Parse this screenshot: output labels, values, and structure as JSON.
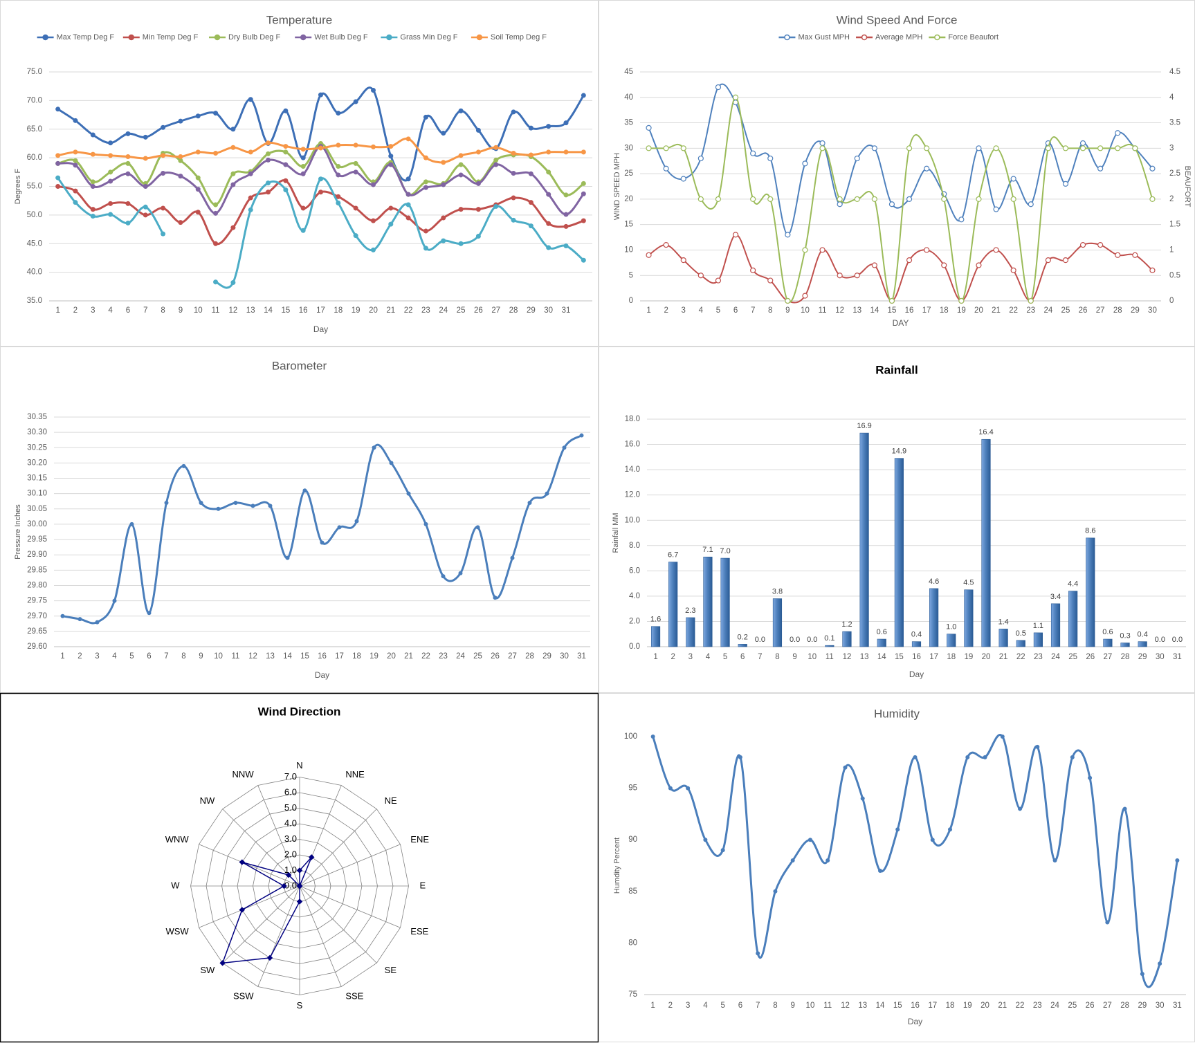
{
  "chart_data": [
    {
      "type": "line",
      "title": "Temperature",
      "x_label": "Day",
      "y_label": "Degrees F",
      "legend": "top",
      "grid": true,
      "categories": [
        1,
        2,
        3,
        4,
        6,
        7,
        8,
        9,
        10,
        11,
        12,
        13,
        14,
        15,
        16,
        17,
        18,
        19,
        20,
        21,
        22,
        23,
        24,
        25,
        26,
        27,
        28,
        29,
        30,
        31,
        null
      ],
      "ylim": [
        35,
        75
      ],
      "yticks": [
        {
          "value": 35,
          "label": "35.0"
        },
        {
          "value": 40,
          "label": "40.0"
        },
        {
          "value": 45,
          "label": "45.0"
        },
        {
          "value": 50,
          "label": "50.0"
        },
        {
          "value": 55,
          "label": "55.0"
        },
        {
          "value": 60,
          "label": "60.0"
        },
        {
          "value": 65,
          "label": "65.0"
        },
        {
          "value": 70,
          "label": "70.0"
        },
        {
          "value": 75,
          "label": "75.0"
        }
      ],
      "series": [
        {
          "name": "Max Temp Deg F",
          "color": "#3d6fb6",
          "values": [
            68.5,
            66.5,
            64,
            62.6,
            64.2,
            63.6,
            65.3,
            66.4,
            67.3,
            67.8,
            65,
            70.2,
            62.5,
            68.2,
            60,
            71,
            67.8,
            69.8,
            71.8,
            60.3,
            56.3,
            67.1,
            64.3,
            68.2,
            64.8,
            61.6,
            68,
            65.2,
            65.5,
            66.1,
            70.9
          ]
        },
        {
          "name": "Min Temp Deg F",
          "color": "#c0504d",
          "values": [
            55,
            54.2,
            51,
            52,
            52,
            50,
            51.2,
            48.7,
            50.5,
            45,
            47.8,
            53,
            54,
            56,
            51.2,
            54,
            53.2,
            51.2,
            49,
            51.2,
            49.5,
            47.2,
            49.5,
            51,
            51,
            51.8,
            53,
            52.2,
            48.5,
            48,
            49
          ]
        },
        {
          "name": "Dry Bulb Deg F",
          "color": "#9bbb59",
          "values": [
            59,
            59.5,
            55.8,
            57.5,
            59,
            55.5,
            60.8,
            59.5,
            56.5,
            51.8,
            57.2,
            57.6,
            60.7,
            61,
            58.5,
            62.5,
            58.5,
            59,
            55.8,
            59.2,
            53.6,
            55.8,
            55.5,
            58.8,
            55.8,
            59.6,
            60.5,
            60.2,
            57.5,
            53.5,
            55.5
          ]
        },
        {
          "name": "Wet Bulb Deg F",
          "color": "#8064a2",
          "values": [
            59,
            58.7,
            55,
            55.9,
            57.2,
            55,
            57.3,
            56.8,
            54.5,
            50.3,
            55.3,
            57.2,
            59.6,
            58.8,
            57.2,
            62,
            57,
            57.5,
            55.3,
            58.8,
            53.6,
            54.8,
            55.3,
            57,
            55.5,
            58.8,
            57.3,
            57.2,
            53.6,
            50.1,
            53.7
          ]
        },
        {
          "name": "Grass Min Deg F",
          "color": "#4bacc6",
          "values": [
            56.5,
            52.2,
            49.8,
            50.1,
            48.6,
            51.4,
            46.7,
            null,
            null,
            38.3,
            38.2,
            50.9,
            55.6,
            54.4,
            47.3,
            56.3,
            52.1,
            46.4,
            43.9,
            48.4,
            51.8,
            44.2,
            45.5,
            45.0,
            46.3,
            51.5,
            49.1,
            48.1,
            44.3,
            44.6,
            42.1
          ]
        },
        {
          "name": "Soil Temp Deg F",
          "color": "#f79646",
          "values": [
            60.4,
            61,
            60.6,
            60.4,
            60.2,
            59.9,
            60.4,
            60.2,
            61,
            60.8,
            61.8,
            61,
            62.6,
            62,
            61.5,
            61.7,
            62.2,
            62.2,
            61.9,
            62,
            63.3,
            60,
            59.2,
            60.4,
            61,
            61.8,
            60.8,
            60.5,
            61,
            61,
            61
          ]
        }
      ]
    },
    {
      "type": "line",
      "title": "Wind Speed And Force",
      "x_label": "DAY",
      "y_label": "WIND SPEED MPH",
      "y2_label": "BEAUFORT",
      "legend": "top",
      "grid": true,
      "categories": [
        1,
        2,
        3,
        4,
        5,
        6,
        7,
        8,
        9,
        10,
        11,
        12,
        13,
        14,
        15,
        16,
        17,
        18,
        19,
        20,
        21,
        22,
        23,
        24,
        25,
        26,
        27,
        28,
        29,
        30
      ],
      "ylim": [
        0,
        45
      ],
      "yticks": [
        0,
        5,
        10,
        15,
        20,
        25,
        30,
        35,
        40,
        45
      ],
      "y2lim": [
        0,
        4.5
      ],
      "y2ticks": [
        0,
        0.5,
        1,
        1.5,
        2,
        2.5,
        3,
        3.5,
        4,
        4.5
      ],
      "series": [
        {
          "name": "Max Gust MPH",
          "color": "#4f81bd",
          "values": [
            34,
            26,
            24,
            28,
            42,
            39,
            29,
            28,
            13,
            27,
            31,
            19,
            28,
            30,
            19,
            20,
            26,
            21,
            16,
            30,
            18,
            24,
            19,
            31,
            23,
            31,
            26,
            33,
            30,
            26
          ]
        },
        {
          "name": "Average MPH",
          "color": "#c0504d",
          "values": [
            9,
            11,
            8,
            5,
            4,
            13,
            6,
            4,
            0,
            1,
            10,
            5,
            5,
            7,
            0,
            8,
            10,
            7,
            0,
            7,
            10,
            6,
            0,
            8,
            8,
            11,
            11,
            9,
            9,
            6
          ]
        },
        {
          "name": "Force Beaufort",
          "color": "#9bbb59",
          "axis": "y2",
          "values": [
            3,
            3,
            3,
            2,
            2,
            4,
            2,
            2,
            0,
            1,
            3,
            2,
            2,
            2,
            0,
            3,
            3,
            2,
            0,
            2,
            3,
            2,
            0,
            3,
            3,
            3,
            3,
            3,
            3,
            2
          ]
        }
      ]
    },
    {
      "type": "line",
      "title": "Barometer",
      "x_label": "Day",
      "y_label": "Pressure Inches",
      "grid": true,
      "color": "#4a7ebb",
      "categories": [
        1,
        2,
        3,
        4,
        5,
        6,
        7,
        8,
        9,
        10,
        11,
        12,
        13,
        14,
        15,
        16,
        17,
        18,
        19,
        20,
        21,
        22,
        23,
        24,
        25,
        26,
        27,
        28,
        29,
        30,
        31
      ],
      "values": [
        29.7,
        29.69,
        29.68,
        29.75,
        30.0,
        29.71,
        30.07,
        30.19,
        30.07,
        30.05,
        30.07,
        30.06,
        30.06,
        29.89,
        30.11,
        29.94,
        29.99,
        30.01,
        30.25,
        30.2,
        30.1,
        30.0,
        29.83,
        29.84,
        29.99,
        29.76,
        29.89,
        30.07,
        30.1,
        30.25,
        30.29
      ],
      "ylim": [
        29.6,
        30.35
      ],
      "yticks": [
        {
          "value": 29.6,
          "label": "29.60"
        },
        29.65,
        {
          "value": 29.7,
          "label": "29.70"
        },
        29.75,
        {
          "value": 29.8,
          "label": "29.80"
        },
        29.85,
        {
          "value": 29.9,
          "label": "29.90"
        },
        29.95,
        {
          "value": 30,
          "label": "30.00"
        },
        30.05,
        {
          "value": 30.1,
          "label": "30.10"
        },
        30.15,
        {
          "value": 30.2,
          "label": "30.20"
        },
        30.25,
        {
          "value": 30.3,
          "label": "30.30"
        },
        30.35
      ]
    },
    {
      "type": "bar",
      "title": "Rainfall",
      "x_label": "Day",
      "y_label": "Rainfall MM",
      "grid": true,
      "color": "#4f81bd",
      "categories": [
        1,
        2,
        3,
        4,
        5,
        6,
        7,
        8,
        9,
        10,
        11,
        12,
        13,
        14,
        15,
        16,
        17,
        18,
        19,
        20,
        21,
        22,
        23,
        24,
        25,
        26,
        27,
        28,
        29,
        30,
        31
      ],
      "values": [
        1.6,
        6.7,
        2.3,
        7.1,
        7.0,
        0.2,
        0.0,
        3.8,
        0.0,
        0.0,
        0.1,
        1.2,
        16.9,
        0.6,
        14.9,
        0.4,
        4.6,
        1.0,
        4.5,
        16.4,
        1.4,
        0.5,
        1.1,
        3.4,
        4.4,
        8.6,
        0.6,
        0.3,
        0.4,
        0.0,
        0.0
      ],
      "value_labels": [
        "1.6",
        "6.7",
        "2.3",
        "7.1",
        "7.0",
        "0.2",
        "0.0",
        "3.8",
        "0.0",
        "0.0",
        "0.1",
        "1.2",
        "16.9",
        "0.6",
        "14.9",
        "0.4",
        "4.6",
        "1.0",
        "4.5",
        "16.4",
        "1.4",
        "0.5",
        "1.1",
        "3.4",
        "4.4",
        "8.6",
        "0.6",
        "0.3",
        "0.4",
        "0.0",
        "0.0"
      ],
      "ylim": [
        0,
        18
      ],
      "yticks": [
        {
          "value": 0,
          "label": "0.0"
        },
        {
          "value": 2,
          "label": "2.0"
        },
        {
          "value": 4,
          "label": "4.0"
        },
        {
          "value": 6,
          "label": "6.0"
        },
        {
          "value": 8,
          "label": "8.0"
        },
        {
          "value": 10,
          "label": "10.0"
        },
        {
          "value": 12,
          "label": "12.0"
        },
        {
          "value": 14,
          "label": "14.0"
        },
        {
          "value": 16,
          "label": "16.0"
        },
        {
          "value": 18,
          "label": "18.0"
        }
      ]
    },
    {
      "type": "radar",
      "title": "Wind Direction",
      "color": "#000080",
      "categories": [
        "N",
        "NNE",
        "NE",
        "ENE",
        "E",
        "ESE",
        "SE",
        "SSE",
        "S",
        "SSW",
        "SW",
        "WSW",
        "W",
        "WNW",
        "NW",
        "NNW"
      ],
      "values": [
        1,
        2,
        0,
        0,
        0,
        0,
        0,
        0,
        1,
        5,
        7,
        4,
        1,
        4,
        1,
        0
      ],
      "rlim": [
        0,
        7
      ],
      "rticks": [
        {
          "value": 0,
          "label": "0.0"
        },
        {
          "value": 1,
          "label": "1.0"
        },
        {
          "value": 2,
          "label": "2.0"
        },
        {
          "value": 3,
          "label": "3.0"
        },
        {
          "value": 4,
          "label": "4.0"
        },
        {
          "value": 5,
          "label": "5.0"
        },
        {
          "value": 6,
          "label": "6.0"
        },
        {
          "value": 7,
          "label": "7.0"
        }
      ]
    },
    {
      "type": "line",
      "title": "Humidity",
      "x_label": "Day",
      "y_label": "Humdity Percent",
      "grid": false,
      "color": "#4a7ebb",
      "categories": [
        1,
        2,
        3,
        4,
        5,
        6,
        7,
        8,
        9,
        10,
        11,
        12,
        13,
        14,
        15,
        16,
        17,
        18,
        19,
        20,
        21,
        22,
        23,
        24,
        25,
        26,
        27,
        28,
        29,
        30,
        31
      ],
      "values": [
        100,
        95,
        95,
        90,
        89,
        98,
        79,
        85,
        88,
        90,
        88,
        97,
        94,
        87,
        91,
        98,
        90,
        91,
        98,
        98,
        100,
        93,
        99,
        88,
        98,
        96,
        82,
        93,
        77,
        78,
        88
      ],
      "ylim": [
        75,
        100
      ],
      "yticks": [
        75,
        80,
        85,
        90,
        95,
        100
      ]
    }
  ]
}
